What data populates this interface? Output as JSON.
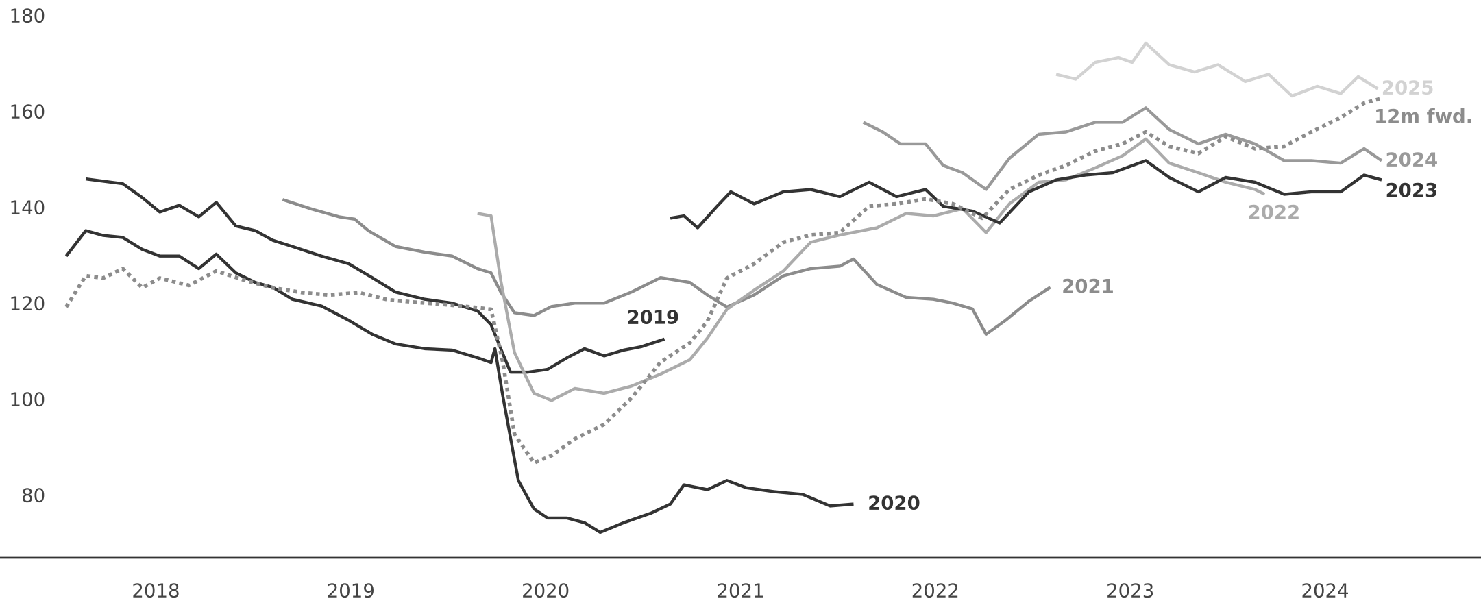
{
  "chart_data": {
    "type": "line",
    "xlim": [
      2017.7,
      2025.3
    ],
    "ylim": [
      67.2,
      183.5
    ],
    "xticks": [
      {
        "value": 2018.5,
        "label": "2018"
      },
      {
        "value": 2019.5,
        "label": "2019"
      },
      {
        "value": 2020.5,
        "label": "2020"
      },
      {
        "value": 2021.5,
        "label": "2021"
      },
      {
        "value": 2022.5,
        "label": "2022"
      },
      {
        "value": 2023.5,
        "label": "2023"
      },
      {
        "value": 2024.5,
        "label": "2024"
      }
    ],
    "yticks": [
      80,
      100,
      120,
      140,
      160,
      180
    ],
    "series": [
      {
        "name": "2019",
        "color": "#333333",
        "x": [
          2018.14,
          2018.33,
          2018.43,
          2018.52,
          2018.62,
          2018.72,
          2018.81,
          2018.91,
          2019.01,
          2019.1,
          2019.2,
          2019.35,
          2019.49,
          2019.61,
          2019.73,
          2019.88,
          2020.02,
          2020.15,
          2020.22,
          2020.27,
          2020.32,
          2020.41,
          2020.51,
          2020.61,
          2020.7,
          2020.8,
          2020.9,
          2020.99,
          2021.11
        ],
        "values": [
          146.2,
          145.2,
          142.3,
          139.3,
          140.7,
          138.3,
          141.3,
          136.4,
          135.4,
          133.4,
          132.1,
          130.1,
          128.5,
          125.6,
          122.6,
          121.1,
          120.3,
          118.7,
          115.8,
          110.8,
          105.9,
          105.9,
          106.5,
          108.9,
          110.8,
          109.3,
          110.5,
          111.2,
          112.8
        ]
      },
      {
        "name": "2020",
        "color": "#333333",
        "x": [
          2018.04,
          2018.14,
          2018.23,
          2018.33,
          2018.43,
          2018.52,
          2018.62,
          2018.72,
          2018.81,
          2018.91,
          2019.01,
          2019.1,
          2019.2,
          2019.35,
          2019.49,
          2019.61,
          2019.73,
          2019.88,
          2020.02,
          2020.15,
          2020.22,
          2020.24,
          2020.28,
          2020.32,
          2020.36,
          2020.44,
          2020.51,
          2020.61,
          2020.7,
          2020.78,
          2020.9,
          2021.04,
          2021.14,
          2021.21,
          2021.33,
          2021.43,
          2021.53,
          2021.67,
          2021.82,
          2021.96,
          2022.08
        ],
        "values": [
          130.1,
          135.4,
          134.4,
          134.0,
          131.5,
          130.1,
          130.1,
          127.5,
          130.5,
          126.6,
          124.6,
          123.6,
          121.1,
          119.7,
          116.7,
          113.8,
          111.8,
          110.8,
          110.5,
          108.9,
          107.9,
          110.8,
          101.0,
          92.2,
          83.3,
          77.4,
          75.5,
          75.5,
          74.5,
          72.5,
          74.5,
          76.5,
          78.4,
          82.4,
          81.4,
          83.3,
          81.8,
          81.0,
          80.4,
          78.0,
          78.4
        ]
      },
      {
        "name": "2021",
        "color": "#8c8c8c",
        "x": [
          2019.15,
          2019.3,
          2019.44,
          2019.52,
          2019.59,
          2019.73,
          2019.88,
          2020.02,
          2020.15,
          2020.22,
          2020.27,
          2020.34,
          2020.44,
          2020.53,
          2020.65,
          2020.8,
          2020.94,
          2021.09,
          2021.24,
          2021.33,
          2021.43,
          2021.57,
          2021.72,
          2021.86,
          2022.01,
          2022.08,
          2022.2,
          2022.35,
          2022.49,
          2022.59,
          2022.69,
          2022.76,
          2022.86,
          2022.98,
          2023.09
        ],
        "values": [
          141.9,
          139.9,
          138.3,
          137.8,
          135.4,
          132.1,
          130.9,
          130.1,
          127.5,
          126.6,
          122.6,
          118.3,
          117.7,
          119.6,
          120.3,
          120.3,
          122.6,
          125.6,
          124.6,
          122.0,
          119.5,
          122.0,
          126.0,
          127.5,
          128.0,
          129.5,
          124.2,
          121.5,
          121.1,
          120.3,
          119.1,
          113.8,
          116.7,
          120.7,
          123.6
        ]
      },
      {
        "name": "2022",
        "color": "#ababab",
        "x": [
          2020.15,
          2020.22,
          2020.27,
          2020.34,
          2020.44,
          2020.53,
          2020.65,
          2020.8,
          2020.94,
          2021.09,
          2021.24,
          2021.33,
          2021.43,
          2021.57,
          2021.72,
          2021.86,
          2022.01,
          2022.2,
          2022.35,
          2022.49,
          2022.64,
          2022.76,
          2022.88,
          2023.03,
          2023.17,
          2023.32,
          2023.46,
          2023.58,
          2023.7,
          2023.85,
          2023.99,
          2024.14,
          2024.19
        ],
        "values": [
          139.0,
          138.5,
          125.0,
          110.0,
          101.5,
          100.0,
          102.5,
          101.5,
          103.0,
          105.5,
          108.5,
          113.0,
          119.0,
          123.0,
          127.0,
          133.0,
          134.5,
          136.0,
          139.0,
          138.5,
          140.0,
          135.0,
          141.0,
          145.5,
          146.0,
          148.5,
          151.0,
          154.5,
          149.5,
          147.5,
          145.5,
          144.0,
          143.0
        ]
      },
      {
        "name": "2023",
        "color": "#333333",
        "x": [
          2021.14,
          2021.21,
          2021.28,
          2021.38,
          2021.45,
          2021.57,
          2021.72,
          2021.86,
          2022.01,
          2022.16,
          2022.3,
          2022.45,
          2022.54,
          2022.69,
          2022.83,
          2022.98,
          2023.12,
          2023.27,
          2023.41,
          2023.58,
          2023.7,
          2023.85,
          2023.99,
          2024.14,
          2024.29,
          2024.43,
          2024.58,
          2024.7,
          2024.79
        ],
        "values": [
          138.0,
          138.5,
          136.0,
          140.5,
          143.5,
          141.0,
          143.5,
          144.0,
          142.5,
          145.5,
          142.5,
          144.0,
          140.5,
          139.5,
          137.0,
          143.5,
          146.0,
          147.0,
          147.5,
          150.0,
          146.5,
          143.5,
          146.5,
          145.5,
          143.0,
          143.5,
          143.5,
          147.0,
          146.0
        ]
      },
      {
        "name": "2024",
        "color": "#999999",
        "x": [
          2022.13,
          2022.23,
          2022.32,
          2022.45,
          2022.54,
          2022.64,
          2022.76,
          2022.88,
          2023.03,
          2023.17,
          2023.32,
          2023.46,
          2023.58,
          2023.7,
          2023.85,
          2023.99,
          2024.14,
          2024.29,
          2024.43,
          2024.58,
          2024.7,
          2024.79
        ],
        "values": [
          158.0,
          156.0,
          153.5,
          153.5,
          149.0,
          147.5,
          144.0,
          150.5,
          155.5,
          156.0,
          158.0,
          158.0,
          161.0,
          156.5,
          153.5,
          155.5,
          153.5,
          150.0,
          150.0,
          149.5,
          152.5,
          150.0
        ]
      },
      {
        "name": "2025",
        "color": "#d2d2d2",
        "x": [
          2023.12,
          2023.22,
          2023.32,
          2023.44,
          2023.51,
          2023.58,
          2023.7,
          2023.83,
          2023.95,
          2024.09,
          2024.21,
          2024.33,
          2024.46,
          2024.58,
          2024.67,
          2024.77
        ],
        "values": [
          168.0,
          167.0,
          170.5,
          171.5,
          170.5,
          174.5,
          170.0,
          168.5,
          170.0,
          166.5,
          168.0,
          163.5,
          165.5,
          164.0,
          167.5,
          165.0
        ]
      },
      {
        "name": "12m fwd.",
        "color": "#8c8c8c",
        "style": "dotted",
        "x": [
          2018.04,
          2018.14,
          2018.23,
          2018.33,
          2018.43,
          2018.52,
          2018.67,
          2018.81,
          2018.96,
          2019.1,
          2019.25,
          2019.39,
          2019.54,
          2019.69,
          2019.83,
          2019.98,
          2020.12,
          2020.22,
          2020.28,
          2020.34,
          2020.44,
          2020.53,
          2020.65,
          2020.8,
          2020.94,
          2021.09,
          2021.24,
          2021.33,
          2021.43,
          2021.57,
          2021.72,
          2021.86,
          2022.01,
          2022.16,
          2022.3,
          2022.45,
          2022.59,
          2022.74,
          2022.88,
          2023.03,
          2023.17,
          2023.32,
          2023.46,
          2023.58,
          2023.7,
          2023.85,
          2023.99,
          2024.14,
          2024.29,
          2024.43,
          2024.58,
          2024.7,
          2024.79
        ],
        "values": [
          119.5,
          126.0,
          125.5,
          127.5,
          123.5,
          125.5,
          124.0,
          127.0,
          125.0,
          123.5,
          122.5,
          122.0,
          122.5,
          121.0,
          120.5,
          120.0,
          119.5,
          119.0,
          108.0,
          93.0,
          87.0,
          88.5,
          92.0,
          95.0,
          100.5,
          108.0,
          112.0,
          116.5,
          125.5,
          128.5,
          133.0,
          134.5,
          135.0,
          140.5,
          141.0,
          142.0,
          141.0,
          138.0,
          144.0,
          147.0,
          149.0,
          152.0,
          153.5,
          156.0,
          153.0,
          151.5,
          155.0,
          152.5,
          153.0,
          156.0,
          159.0,
          162.0,
          163.0
        ]
      }
    ]
  }
}
